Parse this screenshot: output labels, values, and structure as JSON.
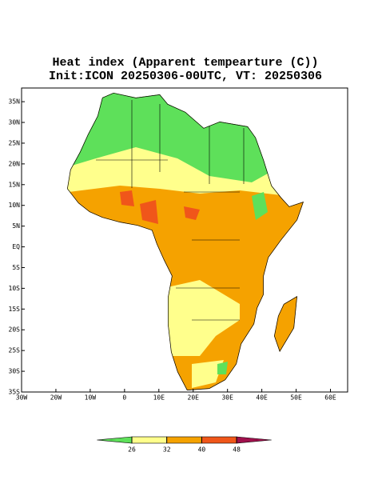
{
  "chart_data": {
    "type": "map",
    "title": "Heat index (Apparent tempearture (C))",
    "subtitle": "Init:ICON 20250306-00UTC, VT: 20250306",
    "xlim": [
      -30,
      65
    ],
    "ylim": [
      -35,
      38.3
    ],
    "xticks": [
      {
        "value": -30,
        "label": "30W"
      },
      {
        "value": -20,
        "label": "20W"
      },
      {
        "value": -10,
        "label": "10W"
      },
      0,
      {
        "value": 10,
        "label": "10E"
      },
      {
        "value": 20,
        "label": "20E"
      },
      {
        "value": 30,
        "label": "30E"
      },
      {
        "value": 40,
        "label": "40E"
      },
      {
        "value": 50,
        "label": "50E"
      },
      {
        "value": 60,
        "label": "60E"
      }
    ],
    "yticks": [
      {
        "value": 35,
        "label": "35N"
      },
      {
        "value": 30,
        "label": "30N"
      },
      {
        "value": 25,
        "label": "25N"
      },
      {
        "value": 20,
        "label": "20N"
      },
      {
        "value": 15,
        "label": "15N"
      },
      {
        "value": 10,
        "label": "10N"
      },
      {
        "value": 5,
        "label": "5N"
      },
      {
        "value": 0,
        "label": "EQ"
      },
      {
        "value": -5,
        "label": "5S"
      },
      {
        "value": -10,
        "label": "10S"
      },
      {
        "value": -15,
        "label": "15S"
      },
      {
        "value": -20,
        "label": "20S"
      },
      {
        "value": -25,
        "label": "25S"
      },
      {
        "value": -30,
        "label": "30S"
      },
      {
        "value": -35,
        "label": "35S"
      }
    ],
    "levels": [
      26,
      32,
      40,
      48
    ],
    "colors": [
      "#5ee05a",
      "#ffff8c",
      "#f5a200",
      "#f0561a",
      "#a0104c"
    ]
  }
}
